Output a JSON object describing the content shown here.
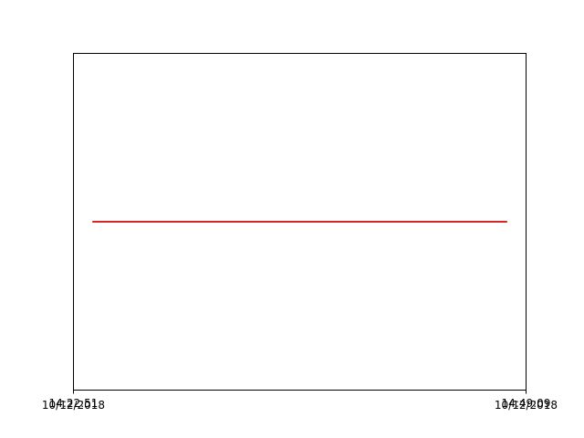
{
  "chart_data": {
    "type": "line",
    "title": "",
    "xlabel": "",
    "ylabel": "",
    "grid": false,
    "legend": "none",
    "x_range": [
      "10/12/2018 14:22:51",
      "10/12/2018 14:49:09"
    ],
    "x_ticks": [
      {
        "time": "14:22:51",
        "date": "10/12/2018"
      },
      {
        "time": "14:49:09",
        "date": "10/12/2018"
      }
    ],
    "y_range": [
      0,
      1
    ],
    "y_ticks": [],
    "series": [
      {
        "color": "#d62728",
        "x": [
          "10/12/2018 14:23:57",
          "10/12/2018 14:48:03"
        ],
        "y": [
          0.5,
          0.5
        ]
      }
    ]
  }
}
